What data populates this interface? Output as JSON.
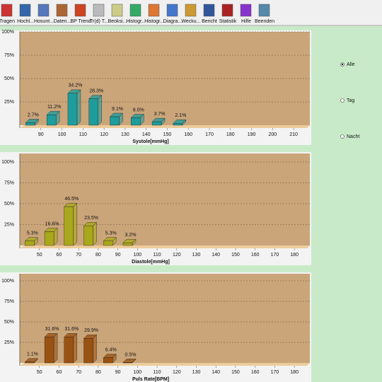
{
  "toolbar": [
    "Tragen",
    "Hochl...",
    "Hosunt...",
    "Daten...",
    "BP Trend",
    "Tr(d) T...",
    "Beoksi...",
    "Histogr...",
    "Histogr...",
    "Diagra...",
    "Wecku...",
    "Bericht",
    "Statistik",
    "Hilfe",
    "Beenden"
  ],
  "options": {
    "labels": [
      "Alle",
      "Tag",
      "Nacht"
    ],
    "selected": 0
  },
  "chart_data": [
    {
      "type": "histogram",
      "xlabel": "Systole[mmHg]",
      "color": "#1f9c9c",
      "bins": [
        80,
        90,
        100,
        110,
        120,
        130,
        140,
        150,
        160
      ],
      "values": [
        2.7,
        11.2,
        34.2,
        28.3,
        9.1,
        8.0,
        3.7,
        2.1
      ],
      "value_labels": [
        "2.7%",
        "11.2%",
        "34.2%",
        "28.3%",
        "9.1%",
        "8.0%",
        "3.7%",
        "2.1%"
      ],
      "xlim": [
        80,
        215
      ],
      "xticks": [
        90,
        100,
        110,
        120,
        130,
        140,
        150,
        160,
        170,
        180,
        190,
        200,
        210
      ],
      "ylim": [
        0,
        100
      ],
      "yticks": [
        {
          "value": 25,
          "label": "25%"
        },
        {
          "value": 50,
          "label": "50%"
        },
        {
          "value": 75,
          "label": "75%"
        },
        {
          "value": 100,
          "label": "100%"
        }
      ],
      "grid": true
    },
    {
      "type": "histogram",
      "xlabel": "Diastole[mmHg]",
      "color": "#a9a81a",
      "bins": [
        40,
        50,
        60,
        70,
        80,
        90,
        100
      ],
      "values": [
        5.3,
        16.6,
        46.5,
        23.5,
        5.3,
        3.2
      ],
      "value_labels": [
        "5.3%",
        "16.6%",
        "46.5%",
        "23.5%",
        "5.3%",
        "3.2%"
      ],
      "xlim": [
        40,
        185
      ],
      "xticks": [
        50,
        60,
        70,
        80,
        90,
        100,
        110,
        120,
        130,
        140,
        150,
        160,
        170,
        180
      ],
      "ylim": [
        0,
        100
      ],
      "yticks": [
        {
          "value": 25,
          "label": "25%"
        },
        {
          "value": 50,
          "label": "50%"
        },
        {
          "value": 75,
          "label": "75%"
        },
        {
          "value": 100,
          "label": "100%"
        }
      ],
      "grid": true
    },
    {
      "type": "histogram",
      "xlabel": "Puls Rate[BPM]",
      "color": "#9a5212",
      "bins": [
        40,
        50,
        60,
        70,
        80,
        90,
        100
      ],
      "values": [
        1.1,
        31.6,
        31.6,
        29.9,
        6.4,
        0.5
      ],
      "value_labels": [
        "1.1%",
        "31.6%",
        "31.6%",
        "29.9%",
        "6.4%",
        "0.5%"
      ],
      "xlim": [
        40,
        185
      ],
      "xticks": [
        50,
        60,
        70,
        80,
        90,
        100,
        110,
        120,
        130,
        140,
        150,
        160,
        170,
        180
      ],
      "ylim": [
        0,
        100
      ],
      "yticks": [
        {
          "value": 25,
          "label": "25%"
        },
        {
          "value": 50,
          "label": "50%"
        },
        {
          "value": 75,
          "label": "75%"
        },
        {
          "value": 100,
          "label": "100%"
        }
      ],
      "grid": true
    }
  ]
}
